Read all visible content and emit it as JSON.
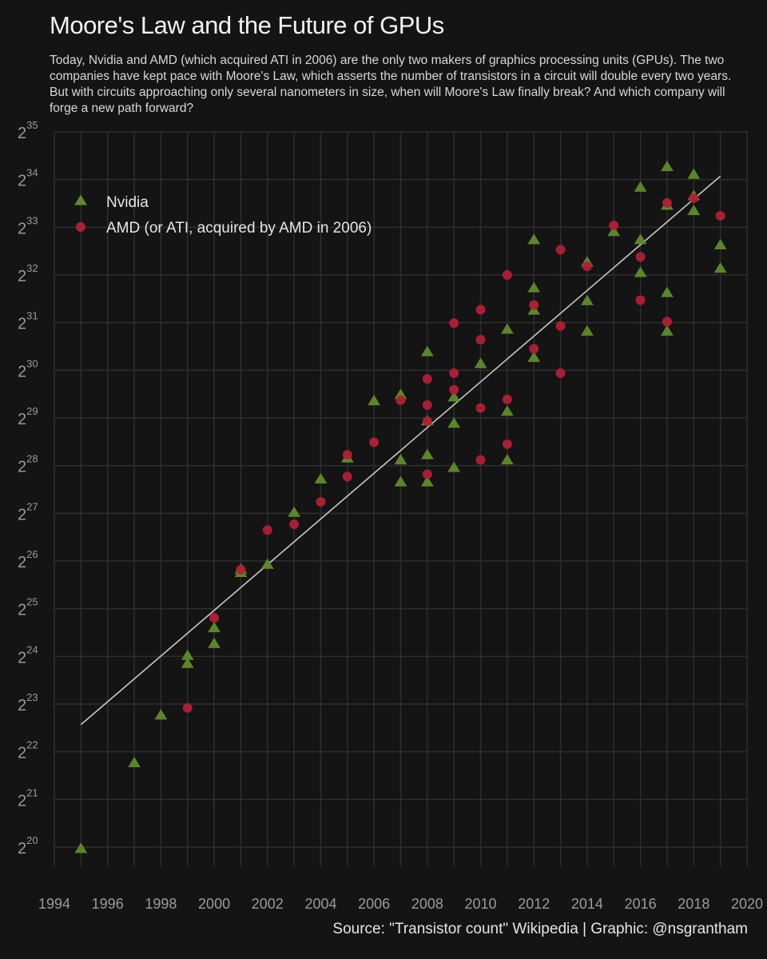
{
  "title": "Moore's Law and the Future of GPUs",
  "subtitle": "Today, Nvidia and AMD (which acquired ATI in 2006) are the only two makers of graphics processing units (GPUs). The two companies have kept pace with Moore's Law, which asserts the number of transistors in a circuit will double every two years. But with circuits approaching only several nanometers in size, when will Moore's Law finally break? And which company will forge a new path forward?",
  "caption": "Source: \"Transistor count\" Wikipedia | Graphic: @nsgrantham",
  "colors": {
    "background": "#141414",
    "grid": "#2e2e2e",
    "nvidia": "#5e8c2a",
    "amd": "#b01f35",
    "trend_line": "#c8c8c8"
  },
  "chart_data": {
    "type": "scatter",
    "y_scale": "log2",
    "xlim": [
      1994,
      2020
    ],
    "ylim_log2": [
      20,
      35
    ],
    "x_ticks": [
      1994,
      1996,
      1998,
      2000,
      2002,
      2004,
      2006,
      2008,
      2010,
      2012,
      2014,
      2016,
      2018,
      2020
    ],
    "y_tick_exponents": [
      20,
      21,
      22,
      23,
      24,
      25,
      26,
      27,
      28,
      29,
      30,
      31,
      32,
      33,
      34,
      35
    ],
    "y_tick_base": "2",
    "grid": true,
    "legend_position": "top-left",
    "series": [
      {
        "name": "Nvidia",
        "marker": "triangle",
        "color": "#5e8c2a",
        "points_log2": [
          [
            1995,
            19.97
          ],
          [
            1997,
            21.77
          ],
          [
            1998,
            22.77
          ],
          [
            1999,
            23.85
          ],
          [
            1999,
            24.02
          ],
          [
            2000,
            24.27
          ],
          [
            2000,
            24.6
          ],
          [
            2001,
            25.76
          ],
          [
            2001,
            25.83
          ],
          [
            2002,
            25.93
          ],
          [
            2003,
            27.02
          ],
          [
            2004,
            27.72
          ],
          [
            2005,
            28.16
          ],
          [
            2006,
            29.36
          ],
          [
            2007,
            27.66
          ],
          [
            2007,
            28.12
          ],
          [
            2007,
            29.49
          ],
          [
            2008,
            27.66
          ],
          [
            2008,
            28.23
          ],
          [
            2008,
            28.94
          ],
          [
            2008,
            30.39
          ],
          [
            2009,
            27.96
          ],
          [
            2009,
            28.89
          ],
          [
            2009,
            29.44
          ],
          [
            2010,
            30.14
          ],
          [
            2011,
            28.12
          ],
          [
            2011,
            29.14
          ],
          [
            2011,
            30.86
          ],
          [
            2012,
            30.27
          ],
          [
            2012,
            31.26
          ],
          [
            2012,
            31.73
          ],
          [
            2012,
            32.74
          ],
          [
            2014,
            30.82
          ],
          [
            2014,
            31.46
          ],
          [
            2014,
            32.27
          ],
          [
            2015,
            32.91
          ],
          [
            2016,
            32.05
          ],
          [
            2016,
            32.74
          ],
          [
            2016,
            33.84
          ],
          [
            2017,
            30.82
          ],
          [
            2017,
            31.63
          ],
          [
            2017,
            33.46
          ],
          [
            2017,
            34.27
          ],
          [
            2018,
            33.35
          ],
          [
            2018,
            33.66
          ],
          [
            2018,
            34.11
          ],
          [
            2019,
            32.14
          ],
          [
            2019,
            32.63
          ]
        ]
      },
      {
        "name": "AMD (or ATI, acquired by AMD in 2006)",
        "marker": "circle",
        "color": "#b01f35",
        "points_log2": [
          [
            1999,
            22.92
          ],
          [
            2000,
            24.81
          ],
          [
            2001,
            25.82
          ],
          [
            2002,
            26.65
          ],
          [
            2003,
            26.77
          ],
          [
            2004,
            27.24
          ],
          [
            2005,
            27.77
          ],
          [
            2005,
            28.23
          ],
          [
            2006,
            28.49
          ],
          [
            2007,
            29.37
          ],
          [
            2008,
            27.82
          ],
          [
            2008,
            28.93
          ],
          [
            2008,
            29.27
          ],
          [
            2008,
            29.82
          ],
          [
            2009,
            29.59
          ],
          [
            2009,
            29.94
          ],
          [
            2009,
            30.99
          ],
          [
            2010,
            28.12
          ],
          [
            2010,
            29.21
          ],
          [
            2010,
            30.64
          ],
          [
            2010,
            31.27
          ],
          [
            2011,
            28.45
          ],
          [
            2011,
            29.39
          ],
          [
            2011,
            32.0
          ],
          [
            2012,
            30.45
          ],
          [
            2012,
            31.37
          ],
          [
            2013,
            29.94
          ],
          [
            2013,
            30.93
          ],
          [
            2013,
            32.53
          ],
          [
            2014,
            32.18
          ],
          [
            2015,
            33.04
          ],
          [
            2016,
            31.47
          ],
          [
            2016,
            32.38
          ],
          [
            2017,
            31.02
          ],
          [
            2017,
            33.51
          ],
          [
            2018,
            33.61
          ],
          [
            2019,
            33.24
          ]
        ]
      }
    ],
    "trend_line_log2": [
      [
        1995,
        22.57
      ],
      [
        2019,
        34.07
      ]
    ]
  }
}
